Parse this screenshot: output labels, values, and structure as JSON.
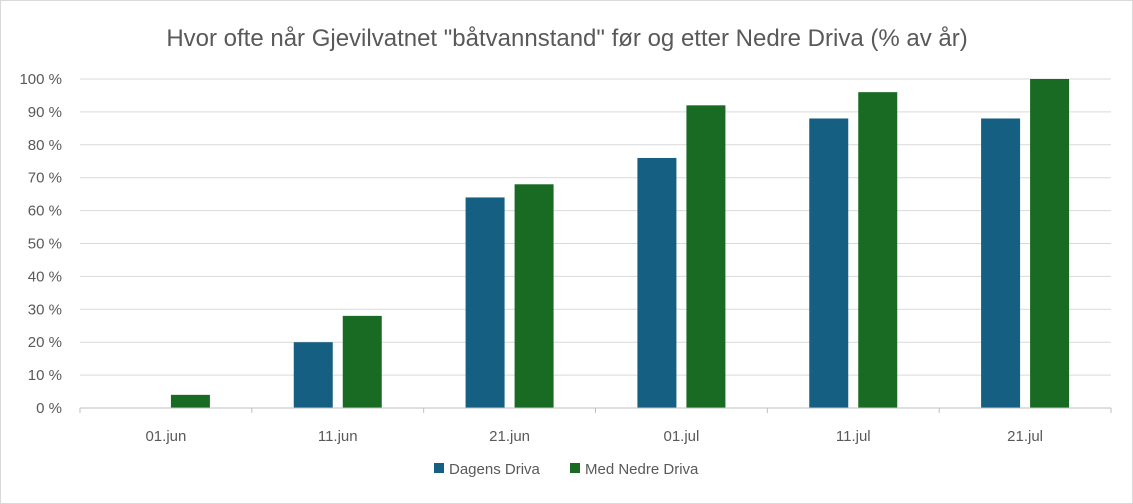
{
  "chart_data": {
    "type": "bar",
    "title": "Hvor ofte når Gjevilvatnet \"båtvannstand\" før og etter Nedre Driva (% av år)",
    "xlabel": "",
    "ylabel": "",
    "categories": [
      "01.jun",
      "11.jun",
      "21.jun",
      "01.jul",
      "11.jul",
      "21.jul"
    ],
    "series": [
      {
        "name": "Dagens Driva",
        "color": "#156082",
        "values": [
          0,
          20,
          64,
          76,
          88,
          88
        ]
      },
      {
        "name": "Med Nedre Driva",
        "color": "#196B24",
        "values": [
          4,
          28,
          68,
          92,
          96,
          100
        ]
      }
    ],
    "ylim": [
      0,
      100
    ],
    "yticks": [
      0,
      10,
      20,
      30,
      40,
      50,
      60,
      70,
      80,
      90,
      100
    ],
    "ytick_labels": [
      "0 %",
      "10 %",
      "20 %",
      "30 %",
      "40 %",
      "50 %",
      "60 %",
      "70 %",
      "80 %",
      "90 %",
      "100 %"
    ],
    "grid": true,
    "legend": "bottom"
  }
}
